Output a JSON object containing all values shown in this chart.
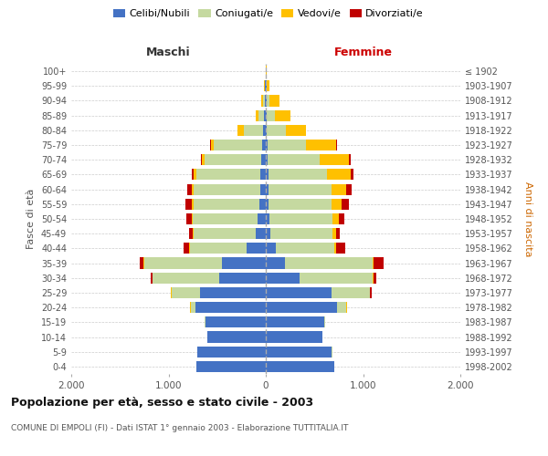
{
  "age_groups": [
    "0-4",
    "5-9",
    "10-14",
    "15-19",
    "20-24",
    "25-29",
    "30-34",
    "35-39",
    "40-44",
    "45-49",
    "50-54",
    "55-59",
    "60-64",
    "65-69",
    "70-74",
    "75-79",
    "80-84",
    "85-89",
    "90-94",
    "95-99",
    "100+"
  ],
  "birth_years": [
    "1998-2002",
    "1993-1997",
    "1988-1992",
    "1983-1987",
    "1978-1982",
    "1973-1977",
    "1968-1972",
    "1963-1967",
    "1958-1962",
    "1953-1957",
    "1948-1952",
    "1943-1947",
    "1938-1942",
    "1933-1937",
    "1928-1932",
    "1923-1927",
    "1918-1922",
    "1913-1917",
    "1908-1912",
    "1903-1907",
    "≤ 1902"
  ],
  "colors": {
    "celibi": "#4472c4",
    "coniugati": "#c5d9a0",
    "vedovi": "#ffc000",
    "divorziati": "#c00000"
  },
  "maschi": {
    "celibi": [
      710,
      700,
      600,
      620,
      720,
      680,
      480,
      450,
      200,
      100,
      80,
      65,
      60,
      60,
      50,
      35,
      30,
      15,
      10,
      5,
      2
    ],
    "coniugati": [
      0,
      0,
      5,
      5,
      50,
      290,
      680,
      800,
      580,
      640,
      670,
      680,
      680,
      650,
      580,
      500,
      200,
      60,
      20,
      5,
      0
    ],
    "vedovi": [
      0,
      0,
      0,
      0,
      5,
      5,
      5,
      5,
      5,
      10,
      15,
      20,
      20,
      30,
      30,
      30,
      60,
      30,
      20,
      5,
      0
    ],
    "divorziati": [
      0,
      0,
      0,
      0,
      5,
      5,
      20,
      40,
      60,
      40,
      50,
      60,
      50,
      20,
      5,
      5,
      5,
      0,
      0,
      0,
      0
    ]
  },
  "femmine": {
    "celibi": [
      700,
      680,
      580,
      600,
      730,
      680,
      350,
      200,
      100,
      50,
      40,
      30,
      30,
      25,
      20,
      15,
      10,
      10,
      5,
      5,
      2
    ],
    "coniugati": [
      5,
      5,
      5,
      10,
      100,
      390,
      750,
      900,
      600,
      640,
      650,
      650,
      650,
      600,
      530,
      400,
      200,
      80,
      30,
      5,
      0
    ],
    "vedovi": [
      0,
      0,
      0,
      0,
      5,
      5,
      5,
      10,
      20,
      30,
      60,
      100,
      150,
      250,
      300,
      310,
      200,
      160,
      110,
      30,
      5
    ],
    "divorziati": [
      0,
      0,
      0,
      0,
      5,
      10,
      30,
      100,
      100,
      40,
      60,
      70,
      50,
      30,
      20,
      10,
      5,
      0,
      0,
      0,
      0
    ]
  },
  "xlim": 2000,
  "xticks": [
    -2000,
    -1000,
    0,
    1000,
    2000
  ],
  "xticklabels": [
    "2.000",
    "1.000",
    "0",
    "1.000",
    "2.000"
  ],
  "title": "Popolazione per età, sesso e stato civile - 2003",
  "subtitle": "COMUNE DI EMPOLI (FI) - Dati ISTAT 1° gennaio 2003 - Elaborazione TUTTITALIA.IT",
  "ylabel_left": "Fasce di età",
  "ylabel_right": "Anni di nascita",
  "label_maschi": "Maschi",
  "label_femmine": "Femmine",
  "legend_labels": [
    "Celibi/Nubili",
    "Coniugati/e",
    "Vedovi/e",
    "Divorziati/e"
  ],
  "background_color": "#ffffff",
  "grid_color": "#cccccc",
  "bar_height": 0.75
}
